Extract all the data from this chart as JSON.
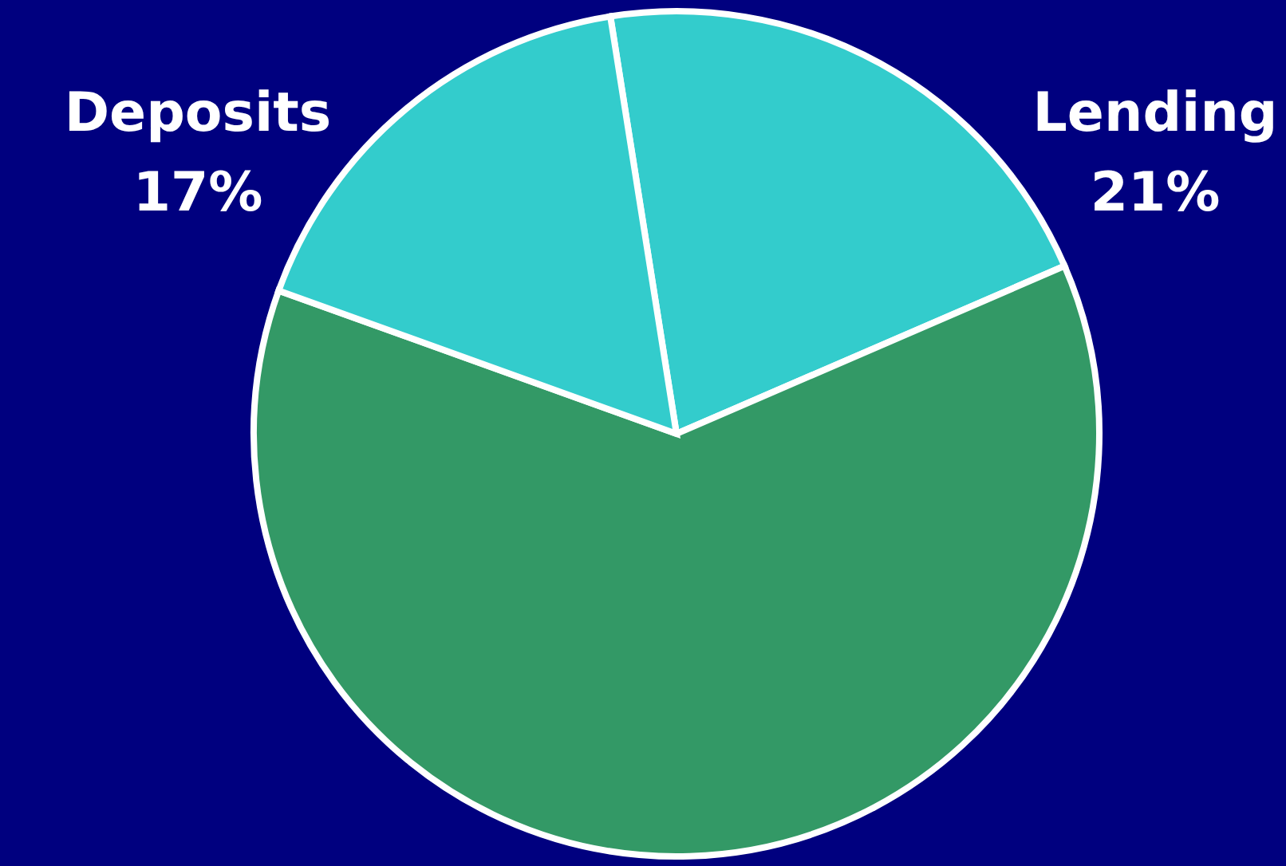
{
  "chart_data": {
    "type": "pie",
    "categories": [
      "Lending",
      null,
      "Deposits"
    ],
    "values": [
      21,
      62,
      17
    ],
    "colors": [
      "#33cccc",
      "#339966",
      "#33cccc"
    ],
    "value_labels": [
      "21%",
      null,
      "17%"
    ]
  }
}
